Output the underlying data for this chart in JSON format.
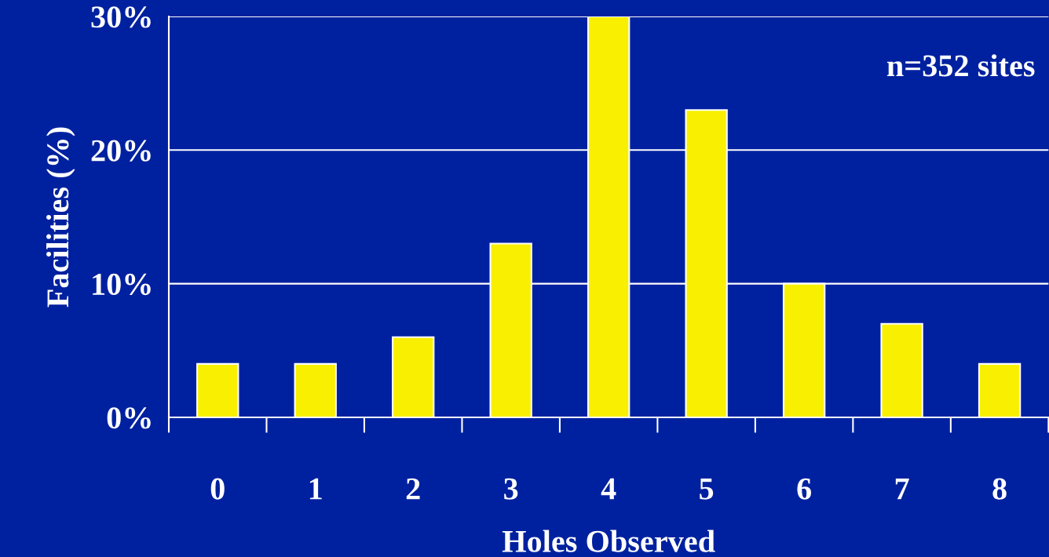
{
  "chart_data": {
    "type": "bar",
    "xlabel": "Holes Observed",
    "ylabel": "Facilities (%)",
    "categories": [
      "0",
      "1",
      "2",
      "3",
      "4",
      "5",
      "6",
      "7",
      "8"
    ],
    "values": [
      4,
      4,
      6,
      13,
      30,
      23,
      10,
      7,
      4
    ],
    "color": "#f8f000",
    "ylim": [
      0,
      30
    ],
    "yticks": [
      {
        "value": 0,
        "label": "0%"
      },
      {
        "value": 10,
        "label": "10%"
      },
      {
        "value": 20,
        "label": "20%"
      },
      {
        "value": 30,
        "label": "30%"
      }
    ],
    "grid": "y",
    "annotations": [
      "n=352 sites"
    ]
  }
}
